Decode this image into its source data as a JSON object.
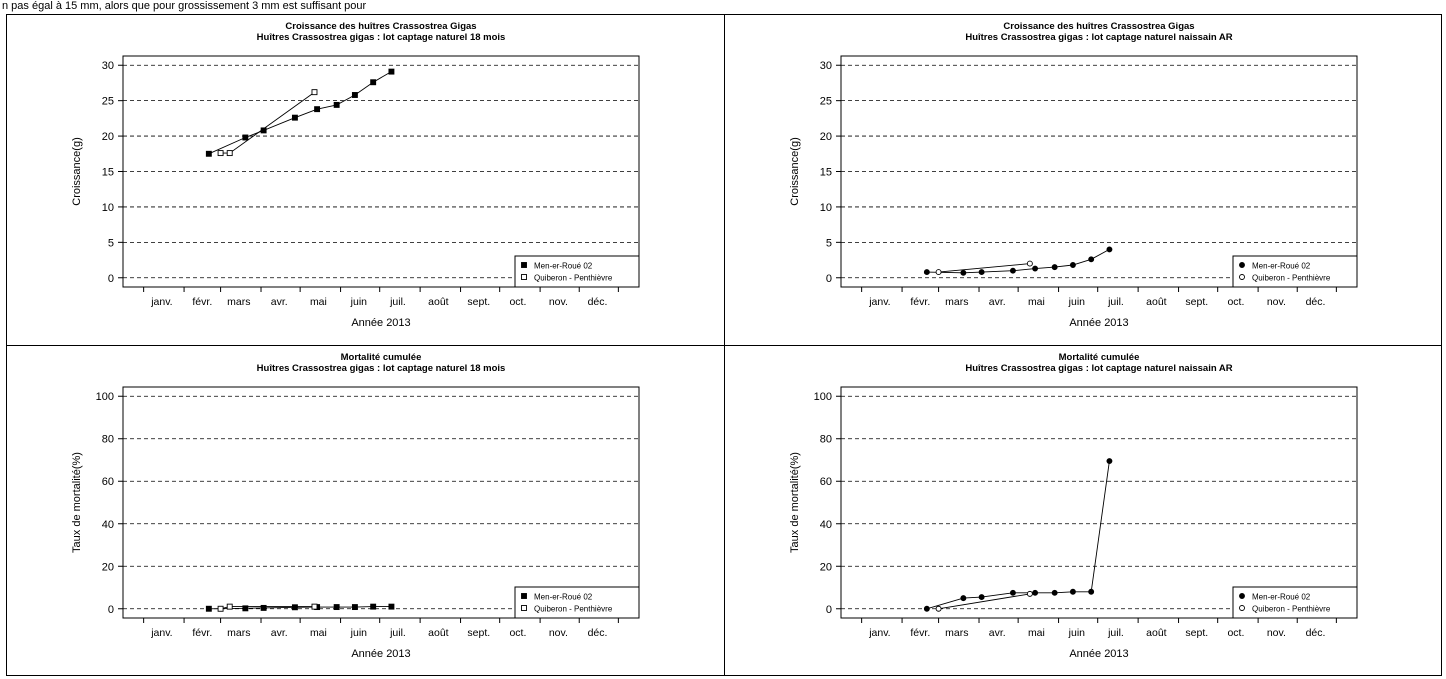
{
  "caption": "n pas égal à 15 mm, alors que pour grossissement 3 mm est suffisant pour",
  "axis": {
    "x_label": "Année 2013",
    "months": [
      "janv.",
      "févr.",
      "mars",
      "avr.",
      "mai",
      "juin",
      "juil.",
      "août",
      "sept.",
      "oct.",
      "nov.",
      "déc."
    ]
  },
  "chart_data": [
    {
      "type": "line",
      "title": "Croissance des huîtres Crassostrea Gigas",
      "subtitle": "Huîtres Crassostrea gigas : lot captage naturel 18 mois",
      "xlabel": "Année 2013",
      "ylabel": "Croissance(g)",
      "xlim": [
        "2013-01-01",
        "2013-12-31"
      ],
      "ylim": [
        0,
        30
      ],
      "yticks": [
        0,
        5,
        10,
        15,
        20,
        25,
        30
      ],
      "grid": true,
      "legend_position": "bottom-right",
      "marker": "square",
      "series": [
        {
          "name": "Men-er-Roué 02",
          "filled": true,
          "x": [
            "2013-02-20",
            "2013-03-20",
            "2013-04-03",
            "2013-04-27",
            "2013-05-14",
            "2013-05-29",
            "2013-06-12",
            "2013-06-26",
            "2013-07-10"
          ],
          "y": [
            17.5,
            19.8,
            20.8,
            22.6,
            23.8,
            24.4,
            25.8,
            27.6,
            29.1
          ]
        },
        {
          "name": "Quiberon - Penthièvre",
          "filled": false,
          "x": [
            "2013-03-01",
            "2013-03-08",
            "2013-05-12"
          ],
          "y": [
            17.6,
            17.6,
            26.2
          ]
        }
      ]
    },
    {
      "type": "line",
      "title": "Croissance des huîtres Crassostrea Gigas",
      "subtitle": "Huîtres Crassostrea gigas : lot captage naturel naissain AR",
      "xlabel": "Année 2013",
      "ylabel": "Croissance(g)",
      "xlim": [
        "2013-01-01",
        "2013-12-31"
      ],
      "ylim": [
        0,
        30
      ],
      "yticks": [
        0,
        5,
        10,
        15,
        20,
        25,
        30
      ],
      "grid": true,
      "legend_position": "bottom-right",
      "marker": "circle",
      "series": [
        {
          "name": "Men-er-Roué 02",
          "filled": true,
          "x": [
            "2013-02-20",
            "2013-03-20",
            "2013-04-03",
            "2013-04-27",
            "2013-05-14",
            "2013-05-29",
            "2013-06-12",
            "2013-06-26",
            "2013-07-10"
          ],
          "y": [
            0.8,
            0.7,
            0.8,
            1.0,
            1.3,
            1.5,
            1.8,
            2.6,
            4.0
          ]
        },
        {
          "name": "Quiberon - Penthièvre",
          "filled": false,
          "x": [
            "2013-03-01",
            "2013-05-10"
          ],
          "y": [
            0.8,
            2.0
          ]
        }
      ]
    },
    {
      "type": "line",
      "title": "Mortalité cumulée",
      "subtitle": "Huîtres Crassostrea gigas : lot captage naturel 18 mois",
      "xlabel": "Année 2013",
      "ylabel": "Taux de mortalité(%)",
      "xlim": [
        "2013-01-01",
        "2013-12-31"
      ],
      "ylim": [
        0,
        100
      ],
      "yticks": [
        0,
        20,
        40,
        60,
        80,
        100
      ],
      "grid": true,
      "legend_position": "bottom-right",
      "marker": "square",
      "series": [
        {
          "name": "Men-er-Roué 02",
          "filled": true,
          "x": [
            "2013-02-20",
            "2013-03-20",
            "2013-04-03",
            "2013-04-27",
            "2013-05-14",
            "2013-05-29",
            "2013-06-12",
            "2013-06-26",
            "2013-07-10"
          ],
          "y": [
            0.0,
            0.2,
            0.4,
            0.7,
            0.8,
            0.8,
            0.8,
            1.0,
            1.0
          ]
        },
        {
          "name": "Quiberon - Penthièvre",
          "filled": false,
          "x": [
            "2013-03-01",
            "2013-03-08",
            "2013-05-12"
          ],
          "y": [
            0.0,
            1.0,
            1.0
          ]
        }
      ]
    },
    {
      "type": "line",
      "title": "Mortalité cumulée",
      "subtitle": "Huîtres Crassostrea gigas : lot captage naturel naissain AR",
      "xlabel": "Année 2013",
      "ylabel": "Taux de mortalité(%)",
      "xlim": [
        "2013-01-01",
        "2013-12-31"
      ],
      "ylim": [
        0,
        100
      ],
      "yticks": [
        0,
        20,
        40,
        60,
        80,
        100
      ],
      "grid": true,
      "legend_position": "bottom-right",
      "marker": "circle",
      "series": [
        {
          "name": "Men-er-Roué 02",
          "filled": true,
          "x": [
            "2013-02-20",
            "2013-03-20",
            "2013-04-03",
            "2013-04-27",
            "2013-05-14",
            "2013-05-29",
            "2013-06-12",
            "2013-06-26",
            "2013-07-10"
          ],
          "y": [
            0.0,
            5.0,
            5.5,
            7.5,
            7.5,
            7.5,
            8.0,
            8.0,
            69.5
          ]
        },
        {
          "name": "Quiberon - Penthièvre",
          "filled": false,
          "x": [
            "2013-03-01",
            "2013-05-10"
          ],
          "y": [
            0.0,
            7.0
          ]
        }
      ]
    }
  ]
}
